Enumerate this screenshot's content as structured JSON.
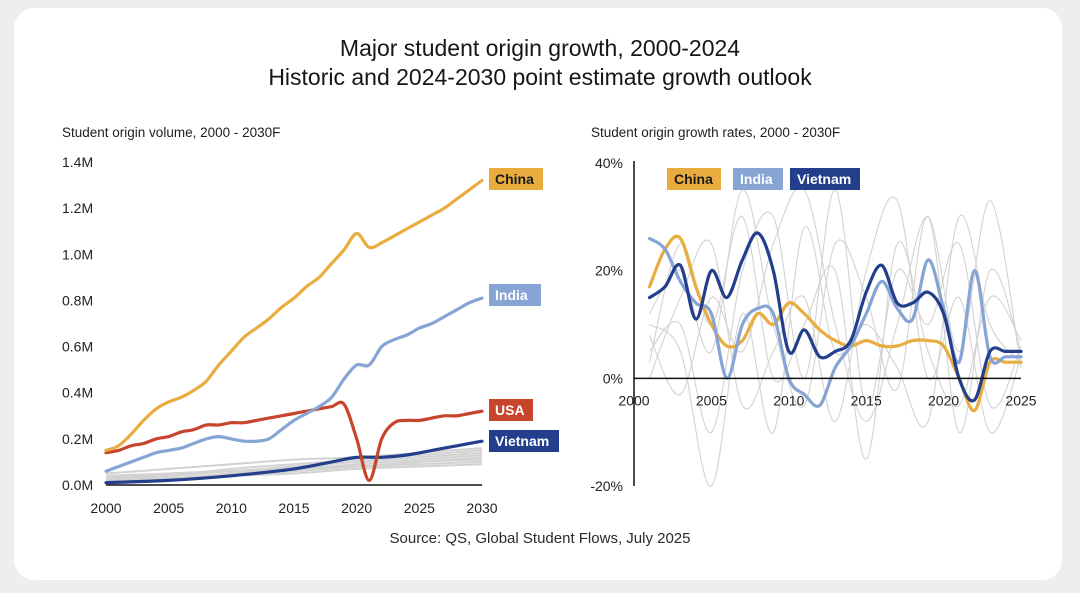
{
  "title_line1": "Major student origin growth, 2000-2024",
  "title_line2": "Historic and 2024-2030 point estimate growth outlook",
  "source": "Source: QS, Global Student Flows, July 2025",
  "colors": {
    "China": "#e8ad3e",
    "India": "#86a4d4",
    "USA": "#c8442c",
    "Vietnam": "#233f8c",
    "other": "#d2d2d2",
    "axis": "#111111"
  },
  "chart_data": [
    {
      "type": "line",
      "title": "Student origin volume, 2000 - 2030F",
      "xlabel": "",
      "ylabel": "",
      "xlim": [
        2000,
        2030
      ],
      "ylim": [
        0,
        1.4
      ],
      "x_ticks": [
        2000,
        2005,
        2010,
        2015,
        2020,
        2025,
        2030
      ],
      "x_tick_labels": [
        "2000",
        "2005",
        "2010",
        "2015",
        "2020",
        "2025",
        "2030"
      ],
      "y_ticks": [
        0,
        0.2,
        0.4,
        0.6,
        0.8,
        1.0,
        1.2,
        1.4
      ],
      "y_tick_labels": [
        "0.0M",
        "0.2M",
        "0.4M",
        "0.6M",
        "0.8M",
        "1.0M",
        "1.2M",
        "1.4M"
      ],
      "legend_position": "right end labels",
      "series": [
        {
          "name": "China",
          "label": "China",
          "x": [
            2000,
            2001,
            2002,
            2003,
            2004,
            2005,
            2006,
            2007,
            2008,
            2009,
            2010,
            2011,
            2012,
            2013,
            2014,
            2015,
            2016,
            2017,
            2018,
            2019,
            2020,
            2021,
            2022,
            2023,
            2024,
            2025,
            2026,
            2027,
            2028,
            2029,
            2030
          ],
          "values": [
            0.15,
            0.17,
            0.22,
            0.28,
            0.33,
            0.36,
            0.38,
            0.41,
            0.45,
            0.52,
            0.58,
            0.64,
            0.68,
            0.72,
            0.77,
            0.81,
            0.86,
            0.9,
            0.96,
            1.02,
            1.09,
            1.03,
            1.05,
            1.08,
            1.11,
            1.14,
            1.17,
            1.2,
            1.24,
            1.28,
            1.32
          ]
        },
        {
          "name": "India",
          "label": "India",
          "x": [
            2000,
            2001,
            2002,
            2003,
            2004,
            2005,
            2006,
            2007,
            2008,
            2009,
            2010,
            2011,
            2012,
            2013,
            2014,
            2015,
            2016,
            2017,
            2018,
            2019,
            2020,
            2021,
            2022,
            2023,
            2024,
            2025,
            2026,
            2027,
            2028,
            2029,
            2030
          ],
          "values": [
            0.06,
            0.08,
            0.1,
            0.12,
            0.14,
            0.15,
            0.16,
            0.18,
            0.2,
            0.21,
            0.2,
            0.19,
            0.19,
            0.2,
            0.24,
            0.28,
            0.31,
            0.34,
            0.38,
            0.46,
            0.52,
            0.52,
            0.6,
            0.63,
            0.65,
            0.68,
            0.7,
            0.73,
            0.76,
            0.79,
            0.81
          ]
        },
        {
          "name": "USA",
          "label": "USA",
          "x": [
            2000,
            2001,
            2002,
            2003,
            2004,
            2005,
            2006,
            2007,
            2008,
            2009,
            2010,
            2011,
            2012,
            2013,
            2014,
            2015,
            2016,
            2017,
            2018,
            2019,
            2020,
            2021,
            2022,
            2023,
            2024,
            2025,
            2026,
            2027,
            2028,
            2029,
            2030
          ],
          "values": [
            0.14,
            0.15,
            0.17,
            0.18,
            0.2,
            0.21,
            0.23,
            0.24,
            0.26,
            0.26,
            0.27,
            0.27,
            0.28,
            0.29,
            0.3,
            0.31,
            0.32,
            0.33,
            0.34,
            0.35,
            0.2,
            0.02,
            0.2,
            0.27,
            0.28,
            0.28,
            0.29,
            0.3,
            0.3,
            0.31,
            0.32
          ]
        },
        {
          "name": "Vietnam",
          "label": "Vietnam",
          "x": [
            2000,
            2005,
            2010,
            2015,
            2018,
            2020,
            2022,
            2024,
            2026,
            2028,
            2030
          ],
          "values": [
            0.01,
            0.02,
            0.04,
            0.07,
            0.1,
            0.12,
            0.12,
            0.13,
            0.15,
            0.17,
            0.19
          ]
        },
        {
          "name": "Other 1",
          "x": [
            2000,
            2005,
            2010,
            2015,
            2020,
            2025,
            2030
          ],
          "values": [
            0.02,
            0.04,
            0.07,
            0.09,
            0.11,
            0.13,
            0.15
          ]
        },
        {
          "name": "Other 2",
          "x": [
            2000,
            2005,
            2010,
            2015,
            2020,
            2025,
            2030
          ],
          "values": [
            0.03,
            0.05,
            0.06,
            0.08,
            0.1,
            0.12,
            0.14
          ]
        },
        {
          "name": "Other 3",
          "x": [
            2000,
            2005,
            2010,
            2015,
            2020,
            2025,
            2030
          ],
          "values": [
            0.02,
            0.03,
            0.05,
            0.07,
            0.09,
            0.11,
            0.13
          ]
        },
        {
          "name": "Other 4",
          "x": [
            2000,
            2005,
            2010,
            2015,
            2020,
            2025,
            2030
          ],
          "values": [
            0.03,
            0.04,
            0.06,
            0.07,
            0.08,
            0.1,
            0.12
          ]
        },
        {
          "name": "Other 5",
          "x": [
            2000,
            2005,
            2010,
            2015,
            2020,
            2025,
            2030
          ],
          "values": [
            0.01,
            0.03,
            0.04,
            0.06,
            0.08,
            0.1,
            0.11
          ]
        },
        {
          "name": "Other 6",
          "x": [
            2000,
            2005,
            2010,
            2015,
            2020,
            2025,
            2030
          ],
          "values": [
            0.04,
            0.05,
            0.06,
            0.07,
            0.08,
            0.09,
            0.1
          ]
        },
        {
          "name": "Other 7",
          "x": [
            2000,
            2005,
            2010,
            2015,
            2020,
            2025,
            2030
          ],
          "values": [
            0.02,
            0.03,
            0.04,
            0.05,
            0.07,
            0.08,
            0.09
          ]
        },
        {
          "name": "Other 8",
          "x": [
            2000,
            2005,
            2010,
            2015,
            2020,
            2025,
            2030
          ],
          "values": [
            0.05,
            0.07,
            0.09,
            0.11,
            0.12,
            0.14,
            0.16
          ]
        }
      ]
    },
    {
      "type": "line",
      "title": "Student origin growth rates, 2000 - 2030F",
      "xlabel": "",
      "ylabel": "",
      "xlim": [
        2000,
        2025
      ],
      "ylim": [
        -20,
        40
      ],
      "x_ticks": [
        2000,
        2005,
        2010,
        2015,
        2020,
        2025
      ],
      "x_tick_labels": [
        "2000",
        "2005",
        "2010",
        "2015",
        "2020",
        "2025"
      ],
      "y_ticks": [
        -20,
        0,
        20,
        40
      ],
      "y_tick_labels": [
        "-20%",
        "0%",
        "20%",
        "40%"
      ],
      "legend": [
        "China",
        "India",
        "Vietnam"
      ],
      "legend_position": "top-left",
      "series": [
        {
          "name": "China",
          "x": [
            2001,
            2002,
            2003,
            2004,
            2005,
            2006,
            2007,
            2008,
            2009,
            2010,
            2011,
            2012,
            2013,
            2014,
            2015,
            2016,
            2017,
            2018,
            2019,
            2020,
            2021,
            2022,
            2023,
            2024,
            2025
          ],
          "values": [
            17,
            24,
            26,
            17,
            10,
            6,
            7,
            12,
            10,
            14,
            12,
            9,
            7,
            6,
            7,
            6,
            6,
            7,
            7,
            6,
            0,
            -6,
            3,
            3,
            3
          ]
        },
        {
          "name": "India",
          "x": [
            2001,
            2002,
            2003,
            2004,
            2005,
            2006,
            2007,
            2008,
            2009,
            2010,
            2011,
            2012,
            2013,
            2014,
            2015,
            2016,
            2017,
            2018,
            2019,
            2020,
            2021,
            2022,
            2023,
            2024,
            2025
          ],
          "values": [
            26,
            24,
            18,
            14,
            12,
            0,
            10,
            13,
            12,
            0,
            -3,
            -5,
            2,
            6,
            12,
            18,
            13,
            11,
            22,
            13,
            3,
            20,
            4,
            4,
            4
          ]
        },
        {
          "name": "Vietnam",
          "x": [
            2001,
            2002,
            2003,
            2004,
            2005,
            2006,
            2007,
            2008,
            2009,
            2010,
            2011,
            2012,
            2013,
            2014,
            2015,
            2016,
            2017,
            2018,
            2019,
            2020,
            2021,
            2022,
            2023,
            2024,
            2025
          ],
          "values": [
            15,
            17,
            21,
            11,
            20,
            15,
            22,
            27,
            20,
            5,
            9,
            4,
            5,
            7,
            16,
            21,
            14,
            14,
            16,
            12,
            0,
            -4,
            5,
            5,
            5
          ]
        },
        {
          "name": "Other 1",
          "x": [
            2001,
            2003,
            2005,
            2007,
            2009,
            2011,
            2013,
            2015,
            2017,
            2019,
            2021,
            2023,
            2025
          ],
          "values": [
            12,
            20,
            5,
            35,
            10,
            -5,
            25,
            15,
            -2,
            30,
            -10,
            20,
            5
          ]
        },
        {
          "name": "Other 2",
          "x": [
            2001,
            2003,
            2005,
            2007,
            2009,
            2011,
            2013,
            2015,
            2017,
            2019,
            2021,
            2023,
            2025
          ],
          "values": [
            5,
            10,
            -10,
            20,
            30,
            0,
            35,
            -5,
            20,
            10,
            25,
            -5,
            6
          ]
        },
        {
          "name": "Other 3",
          "x": [
            2001,
            2003,
            2005,
            2007,
            2009,
            2011,
            2013,
            2015,
            2017,
            2019,
            2021,
            2023,
            2025
          ],
          "values": [
            8,
            -3,
            15,
            5,
            25,
            35,
            10,
            -8,
            10,
            30,
            5,
            33,
            2
          ]
        },
        {
          "name": "Other 4",
          "x": [
            2001,
            2003,
            2005,
            2007,
            2009,
            2011,
            2013,
            2015,
            2017,
            2019,
            2021,
            2023,
            2025
          ],
          "values": [
            0,
            15,
            25,
            -5,
            5,
            15,
            -8,
            20,
            33,
            0,
            15,
            -10,
            4
          ]
        },
        {
          "name": "Other 5",
          "x": [
            2001,
            2003,
            2005,
            2007,
            2009,
            2011,
            2013,
            2015,
            2017,
            2019,
            2021,
            2023,
            2025
          ],
          "values": [
            10,
            5,
            -20,
            12,
            -10,
            28,
            5,
            10,
            2,
            -8,
            30,
            10,
            3
          ]
        },
        {
          "name": "Other 6",
          "x": [
            2001,
            2003,
            2005,
            2007,
            2009,
            2011,
            2013,
            2015,
            2017,
            2019,
            2021,
            2023,
            2025
          ],
          "values": [
            3,
            25,
            10,
            30,
            0,
            10,
            20,
            -15,
            25,
            5,
            -5,
            15,
            7
          ]
        }
      ]
    }
  ]
}
